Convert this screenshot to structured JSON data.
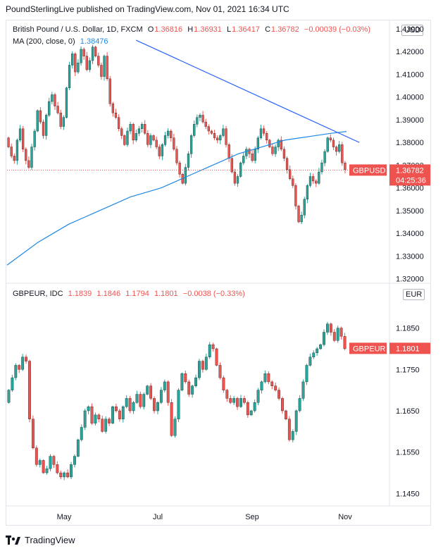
{
  "header": {
    "text": "PoundSterlingLive published on TradingView.com, Nov 01, 2021 16:34 UTC"
  },
  "footer": {
    "brand": "TradingView",
    "logo_icon": "tradingview-logo-icon"
  },
  "chart_data": [
    {
      "type": "candlestick",
      "symbol_line": "British Pound / U.S. Dollar, 1D, FXCM",
      "ohlc": {
        "o_label": "O",
        "o": "1.36816",
        "h_label": "H",
        "h": "1.36931",
        "l_label": "L",
        "l": "1.36417",
        "c_label": "C",
        "c": "1.36782",
        "change": "−0.00039 (−0.03%)"
      },
      "ma_label": "MA (200, close, 0)",
      "ma_value": "1.38476",
      "currency": "USD",
      "price_tag": {
        "name": "GBPUSD",
        "value": "1.36782",
        "countdown": "04:25:36"
      },
      "ylim": [
        1.318,
        1.434
      ],
      "y_ticks": [
        "1.32000",
        "1.33000",
        "1.34000",
        "1.35000",
        "1.36000",
        "1.37000",
        "1.38000",
        "1.39000",
        "1.40000",
        "1.41000",
        "1.42000",
        "1.43000"
      ],
      "close_series": [
        1.378,
        1.374,
        1.372,
        1.381,
        1.386,
        1.377,
        1.372,
        1.369,
        1.378,
        1.385,
        1.394,
        1.389,
        1.383,
        1.392,
        1.398,
        1.401,
        1.396,
        1.393,
        1.387,
        1.391,
        1.404,
        1.414,
        1.419,
        1.411,
        1.415,
        1.421,
        1.418,
        1.412,
        1.416,
        1.422,
        1.418,
        1.414,
        1.409,
        1.418,
        1.408,
        1.397,
        1.393,
        1.391,
        1.386,
        1.383,
        1.379,
        1.385,
        1.388,
        1.381,
        1.384,
        1.386,
        1.388,
        1.384,
        1.379,
        1.383,
        1.381,
        1.378,
        1.374,
        1.379,
        1.383,
        1.385,
        1.382,
        1.377,
        1.371,
        1.366,
        1.362,
        1.369,
        1.375,
        1.383,
        1.388,
        1.391,
        1.392,
        1.389,
        1.387,
        1.385,
        1.384,
        1.382,
        1.381,
        1.383,
        1.386,
        1.379,
        1.373,
        1.367,
        1.362,
        1.365,
        1.371,
        1.374,
        1.377,
        1.375,
        1.372,
        1.377,
        1.382,
        1.386,
        1.384,
        1.381,
        1.378,
        1.375,
        1.378,
        1.381,
        1.377,
        1.373,
        1.368,
        1.364,
        1.361,
        1.352,
        1.345,
        1.348,
        1.355,
        1.361,
        1.365,
        1.363,
        1.362,
        1.367,
        1.371,
        1.376,
        1.382,
        1.381,
        1.378,
        1.376,
        1.379,
        1.371,
        1.368
      ],
      "ma_series": [
        1.326,
        1.331,
        1.336,
        1.34,
        1.344,
        1.347,
        1.35,
        1.353,
        1.356,
        1.358,
        1.36,
        1.363,
        1.366,
        1.369,
        1.372,
        1.375,
        1.377,
        1.379,
        1.381,
        1.382,
        1.383,
        1.384,
        1.3848
      ],
      "trendline": {
        "from": [
          0.38,
          1.425
        ],
        "to": [
          1.0,
          1.38
        ]
      },
      "x_ticks": [
        "May",
        "Jul",
        "Sep",
        "Nov"
      ]
    },
    {
      "type": "candlestick",
      "symbol_line": "GBPEUR, IDC",
      "ohlc": {
        "o": "1.1839",
        "h": "1.1846",
        "l": "1.1794",
        "c": "1.1801",
        "change": "−0.0038 (−0.33%)"
      },
      "currency": "EUR",
      "price_tag": {
        "name": "GBPEUR",
        "value": "1.1801"
      },
      "ylim": [
        1.142,
        1.1955
      ],
      "y_ticks": [
        "1.1450",
        "1.1550",
        "1.1650",
        "1.1750",
        "1.1850"
      ],
      "close_series": [
        1.17,
        1.173,
        1.176,
        1.175,
        1.178,
        1.177,
        1.163,
        1.156,
        1.152,
        1.153,
        1.15,
        1.151,
        1.154,
        1.152,
        1.15,
        1.149,
        1.15,
        1.149,
        1.152,
        1.154,
        1.158,
        1.161,
        1.165,
        1.166,
        1.162,
        1.164,
        1.163,
        1.16,
        1.163,
        1.162,
        1.166,
        1.165,
        1.163,
        1.166,
        1.168,
        1.165,
        1.167,
        1.169,
        1.166,
        1.169,
        1.171,
        1.168,
        1.165,
        1.167,
        1.17,
        1.172,
        1.167,
        1.159,
        1.163,
        1.17,
        1.174,
        1.172,
        1.169,
        1.171,
        1.173,
        1.177,
        1.175,
        1.178,
        1.181,
        1.18,
        1.176,
        1.173,
        1.17,
        1.168,
        1.167,
        1.168,
        1.166,
        1.168,
        1.167,
        1.164,
        1.165,
        1.167,
        1.17,
        1.172,
        1.174,
        1.172,
        1.171,
        1.17,
        1.168,
        1.165,
        1.163,
        1.158,
        1.16,
        1.165,
        1.168,
        1.172,
        1.176,
        1.178,
        1.179,
        1.18,
        1.181,
        1.184,
        1.186,
        1.184,
        1.182,
        1.185,
        1.183,
        1.18
      ],
      "x_ticks": [
        "May",
        "Jul",
        "Sep",
        "Nov"
      ]
    }
  ],
  "colors": {
    "up": "#26a69a",
    "down": "#ef5350",
    "ma": "#1e88e5",
    "trend": "#2962ff"
  }
}
